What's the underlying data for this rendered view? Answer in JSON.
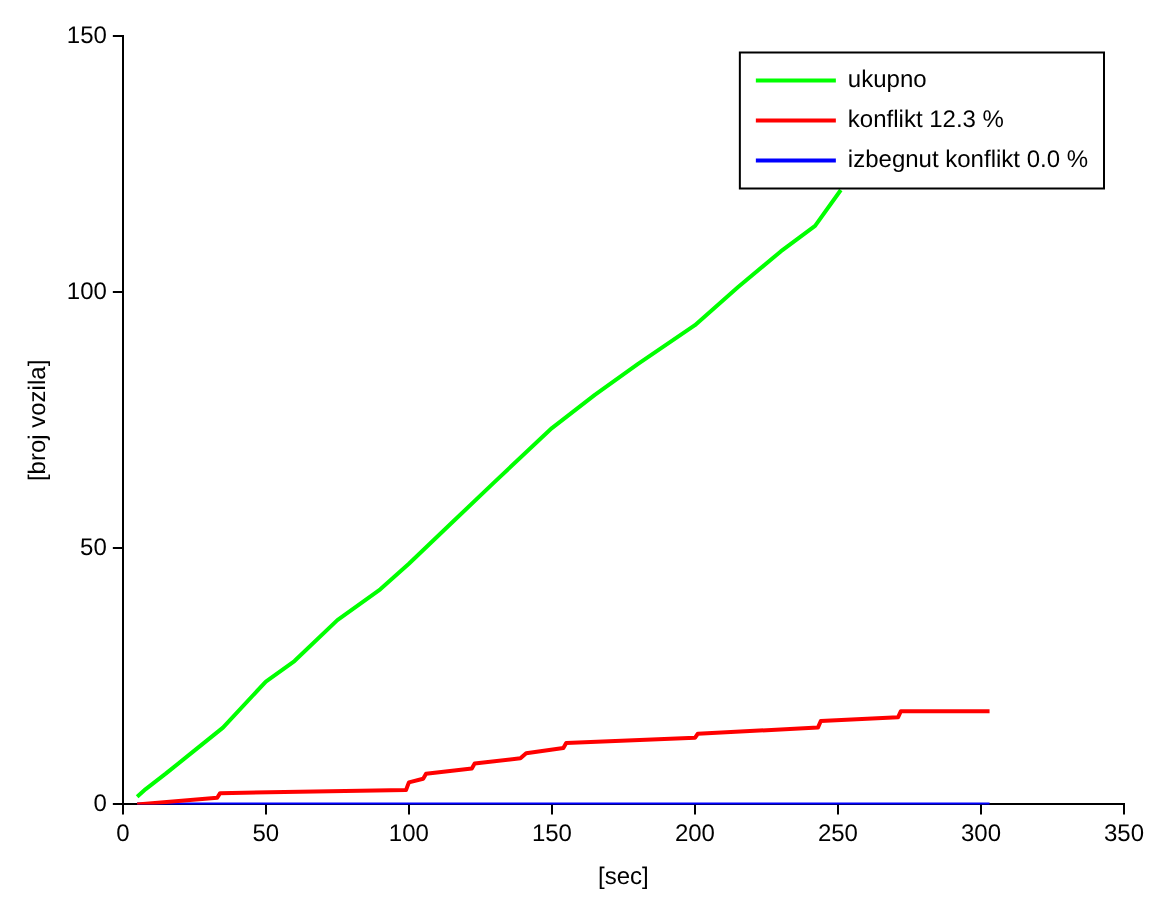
{
  "chart_data": {
    "type": "line",
    "xlabel": "[sec]",
    "ylabel": "[broj vozila]",
    "xlim": [
      0,
      350
    ],
    "xticks": [
      0,
      50,
      100,
      150,
      200,
      250,
      300,
      350
    ],
    "ylim": [
      0,
      150
    ],
    "yticks": [
      0,
      50,
      100,
      150
    ],
    "grid": false,
    "legend": "top right",
    "marker": "none",
    "line_style": "solid",
    "series": [
      {
        "name": "ukupno",
        "color": "#00ff00",
        "x": [
          5,
          8,
          15,
          25,
          35,
          50,
          60,
          75,
          90,
          100,
          115,
          130,
          150,
          165,
          180,
          200,
          215,
          230,
          242,
          251
        ],
        "values": [
          1.5,
          3,
          6,
          10.5,
          15,
          24,
          28,
          36,
          42,
          47,
          55,
          63,
          73.5,
          80,
          86,
          93.6,
          101,
          108,
          113,
          120
        ]
      },
      {
        "name": "konflikt 12.3 %",
        "color": "#ff0000",
        "x": [
          5,
          33,
          34,
          99,
          100,
          105,
          106,
          122,
          123,
          139,
          141,
          154,
          155,
          200,
          201,
          243,
          244,
          271,
          272,
          303
        ],
        "values": [
          0,
          1.3,
          2.2,
          2.8,
          4.3,
          5,
          6,
          7,
          8,
          9,
          10,
          11,
          12,
          13,
          13.8,
          15,
          16.3,
          17,
          18.2,
          18.2
        ]
      },
      {
        "name": "izbegnut konflikt 0.0 %",
        "color": "#0000ff",
        "x": [
          5,
          303
        ],
        "values": [
          0,
          0
        ]
      }
    ]
  }
}
